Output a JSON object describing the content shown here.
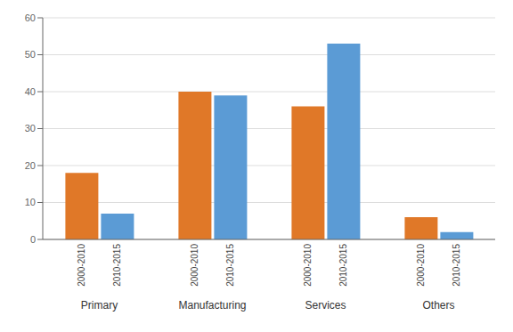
{
  "chart_data": {
    "type": "bar",
    "categories": [
      "Primary",
      "Manufacturing",
      "Services",
      "Others"
    ],
    "series": [
      {
        "name": "2000-2010",
        "color": "#E07828",
        "values": [
          18,
          40,
          36,
          6
        ]
      },
      {
        "name": "2010-2015",
        "color": "#5B9BD5",
        "values": [
          7,
          39,
          53,
          2
        ]
      }
    ],
    "ylim": [
      0,
      60
    ],
    "yticks": [
      0,
      10,
      20,
      30,
      40,
      50,
      60
    ],
    "grid": true
  }
}
